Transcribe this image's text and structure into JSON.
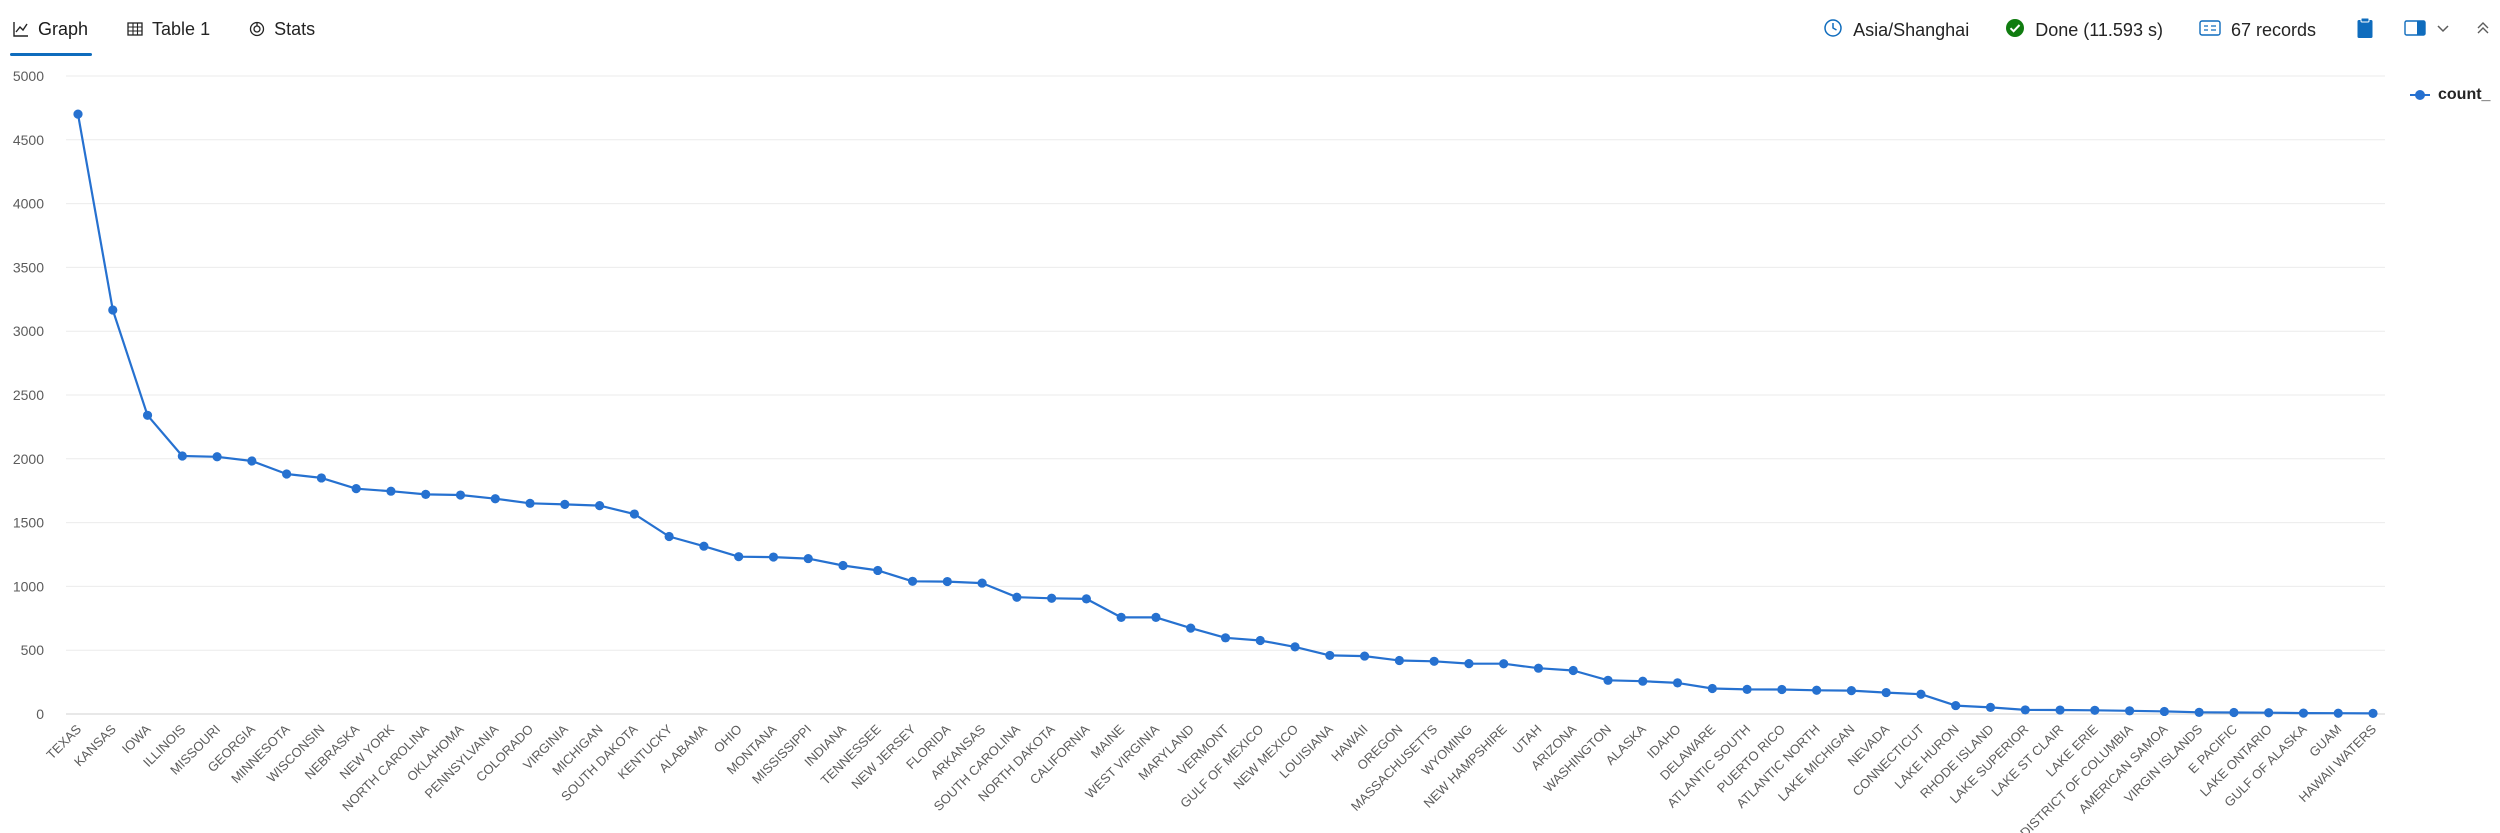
{
  "tabs": [
    {
      "label": "Graph",
      "icon": "line-chart-icon",
      "active": true
    },
    {
      "label": "Table 1",
      "icon": "table-icon",
      "active": false
    },
    {
      "label": "Stats",
      "icon": "stats-icon",
      "active": false
    }
  ],
  "status": {
    "timezone": "Asia/Shanghai",
    "done": "Done (11.593 s)",
    "records": "67 records"
  },
  "colors": {
    "series": "#2671d0",
    "accent": "#0f6cbd",
    "done_green": "#107c10",
    "grid": "#ebebeb"
  },
  "chart_data": {
    "type": "line",
    "xlabel": "",
    "ylabel": "",
    "ylim": [
      0,
      5000
    ],
    "yticks": [
      0,
      500,
      1000,
      1500,
      2000,
      2500,
      3000,
      3500,
      4000,
      4500,
      5000
    ],
    "grid": true,
    "legend_position": "top-right",
    "categories": [
      "TEXAS",
      "KANSAS",
      "IOWA",
      "ILLINOIS",
      "MISSOURI",
      "GEORGIA",
      "MINNESOTA",
      "WISCONSIN",
      "NEBRASKA",
      "NEW YORK",
      "NORTH CAROLINA",
      "OKLAHOMA",
      "PENNSYLVANIA",
      "COLORADO",
      "VIRGINIA",
      "MICHIGAN",
      "SOUTH DAKOTA",
      "KENTUCKY",
      "ALABAMA",
      "OHIO",
      "MONTANA",
      "MISSISSIPPI",
      "INDIANA",
      "TENNESSEE",
      "NEW JERSEY",
      "FLORIDA",
      "ARKANSAS",
      "SOUTH CAROLINA",
      "NORTH DAKOTA",
      "CALIFORNIA",
      "MAINE",
      "WEST VIRGINIA",
      "MARYLAND",
      "VERMONT",
      "GULF OF MEXICO",
      "NEW MEXICO",
      "LOUISIANA",
      "HAWAII",
      "OREGON",
      "MASSACHUSETTS",
      "WYOMING",
      "NEW HAMPSHIRE",
      "UTAH",
      "ARIZONA",
      "WASHINGTON",
      "ALASKA",
      "IDAHO",
      "DELAWARE",
      "ATLANTIC SOUTH",
      "PUERTO RICO",
      "ATLANTIC NORTH",
      "LAKE MICHIGAN",
      "NEVADA",
      "CONNECTICUT",
      "LAKE HURON",
      "RHODE ISLAND",
      "LAKE SUPERIOR",
      "LAKE ST CLAIR",
      "LAKE ERIE",
      "DISTRICT OF COLUMBIA",
      "AMERICAN SAMOA",
      "VIRGIN ISLANDS",
      "E PACIFIC",
      "LAKE ONTARIO",
      "GULF OF ALASKA",
      "GUAM",
      "HAWAII WATERS"
    ],
    "series": [
      {
        "name": "count_",
        "values": [
          4701,
          3166,
          2341,
          2022,
          2016,
          1983,
          1881,
          1850,
          1766,
          1746,
          1721,
          1716,
          1687,
          1651,
          1643,
          1633,
          1567,
          1391,
          1315,
          1233,
          1230,
          1218,
          1164,
          1125,
          1040,
          1038,
          1026,
          915,
          907,
          902,
          757,
          757,
          673,
          597,
          576,
          526,
          459,
          454,
          419,
          413,
          395,
          394,
          359,
          341,
          264,
          257,
          244,
          200,
          193,
          192,
          186,
          183,
          168,
          155,
          66,
          52,
          32,
          31,
          29,
          25,
          20,
          13,
          12,
          10,
          7,
          6,
          5
        ]
      }
    ]
  }
}
